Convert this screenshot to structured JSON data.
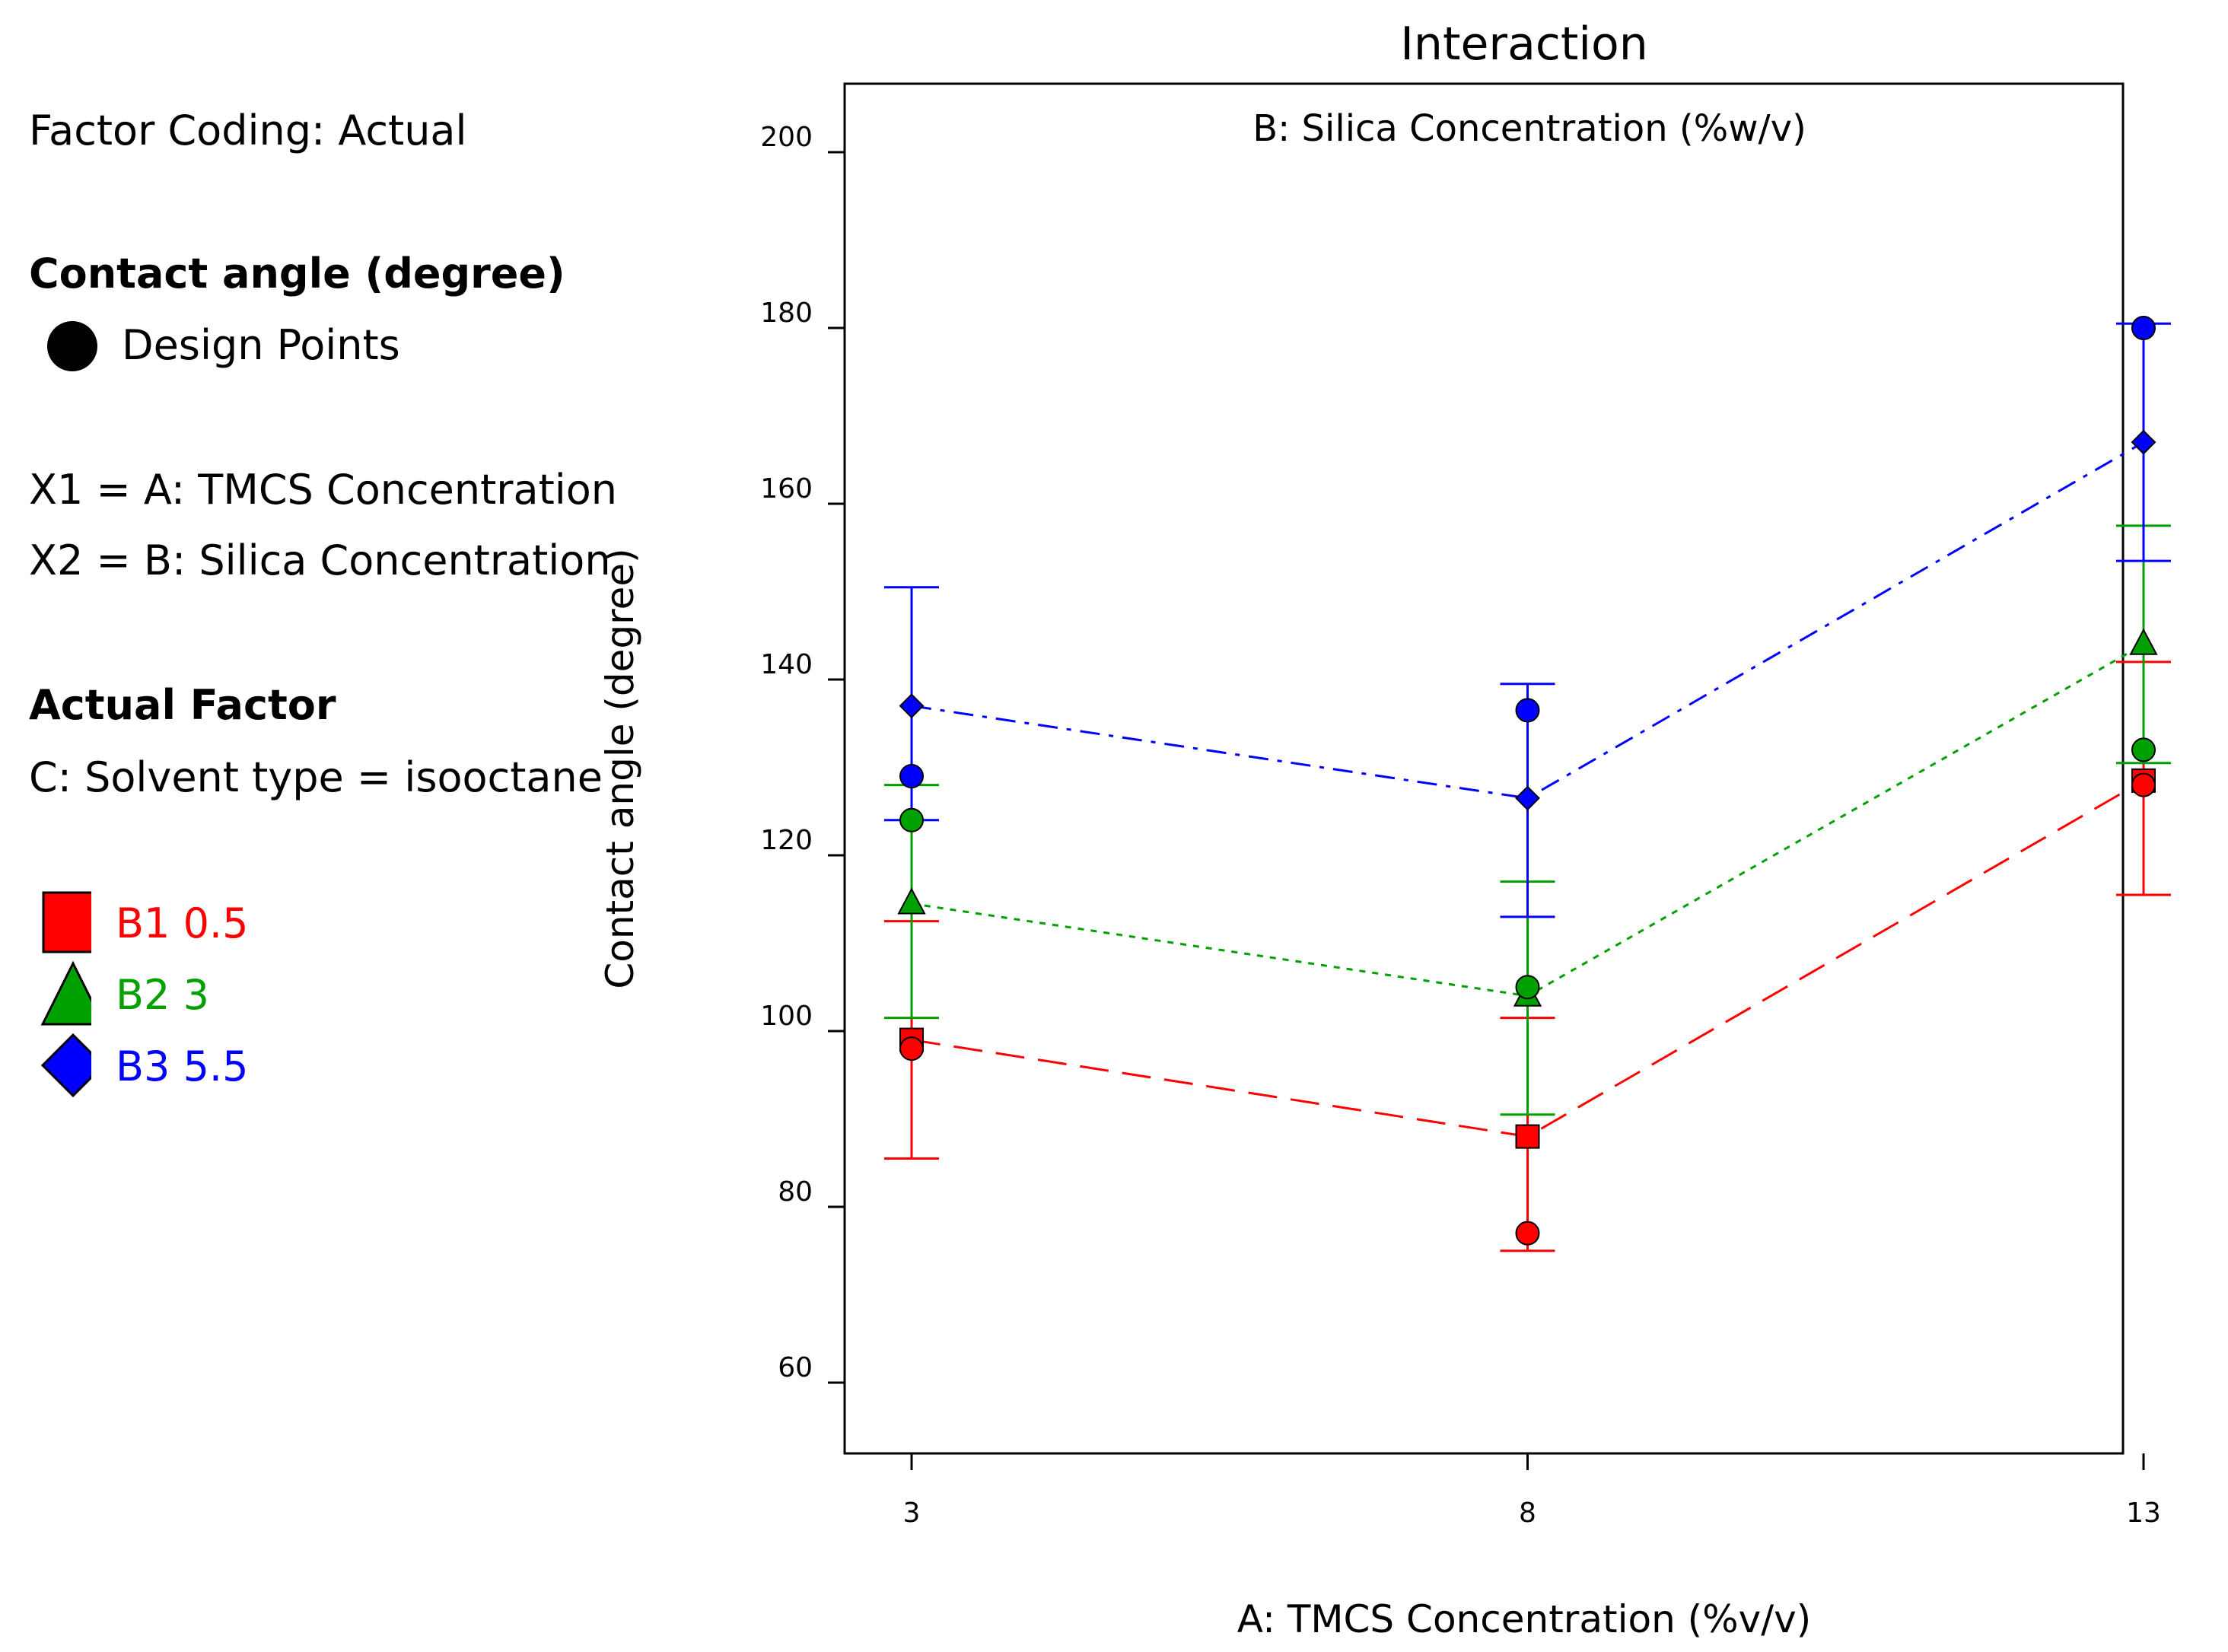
{
  "legend_panel": {
    "factor_coding": "Factor Coding: Actual",
    "response_title": "Contact angle (degree)",
    "design_points_label": "Design Points",
    "x1_label": "X1 = A: TMCS Concentration",
    "x2_label": "X2 = B: Silica Concentration",
    "actual_factor_title": "Actual Factor",
    "actual_factor_value": "C: Solvent type = isooctane",
    "series_legend": [
      {
        "label": "B1 0.5",
        "color": "#ff0000",
        "marker": "square"
      },
      {
        "label": "B2 3",
        "color": "#00a000",
        "marker": "triangle"
      },
      {
        "label": "B3 5.5",
        "color": "#0000ff",
        "marker": "diamond"
      }
    ]
  },
  "chart_data": {
    "type": "line",
    "title": "Interaction",
    "subtitle": "B: Silica Concentration (%w/v)",
    "xlabel": "A: TMCS Concentration (%v/v)",
    "ylabel": "Contact angle (degree)",
    "x": [
      3,
      8,
      13
    ],
    "x_tick_labels": [
      "3",
      "8",
      "13"
    ],
    "ylim": [
      50,
      208
    ],
    "y_ticks": [
      60,
      80,
      100,
      120,
      140,
      160,
      180,
      200
    ],
    "series": [
      {
        "name": "B1 0.5",
        "color": "#ff0000",
        "marker": "square",
        "dash": "long",
        "values": [
          99,
          88,
          128.5
        ],
        "error_low": [
          85.5,
          75,
          115.5
        ],
        "error_high": [
          112.5,
          101.5,
          142
        ]
      },
      {
        "name": "B2 3",
        "color": "#00a000",
        "marker": "triangle",
        "dash": "dot",
        "values": [
          114.5,
          104,
          144
        ],
        "error_low": [
          101.5,
          90.5,
          130.5
        ],
        "error_high": [
          128,
          117,
          157.5
        ]
      },
      {
        "name": "B3 5.5",
        "color": "#0000ff",
        "marker": "diamond",
        "dash": "dashdot",
        "values": [
          137,
          126.5,
          167
        ],
        "error_low": [
          124,
          113,
          153.5
        ],
        "error_high": [
          150.5,
          139.5,
          180.5
        ]
      }
    ],
    "design_points": [
      {
        "x": 3,
        "y": 129,
        "color": "#0000ff"
      },
      {
        "x": 3,
        "y": 124,
        "color": "#00a000"
      },
      {
        "x": 3,
        "y": 98,
        "color": "#ff0000"
      },
      {
        "x": 8,
        "y": 136.5,
        "color": "#0000ff"
      },
      {
        "x": 8,
        "y": 105,
        "color": "#00a000"
      },
      {
        "x": 8,
        "y": 77,
        "color": "#ff0000"
      },
      {
        "x": 13,
        "y": 180,
        "color": "#0000ff"
      },
      {
        "x": 13,
        "y": 132,
        "color": "#00a000"
      },
      {
        "x": 13,
        "y": 128,
        "color": "#ff0000"
      }
    ]
  }
}
